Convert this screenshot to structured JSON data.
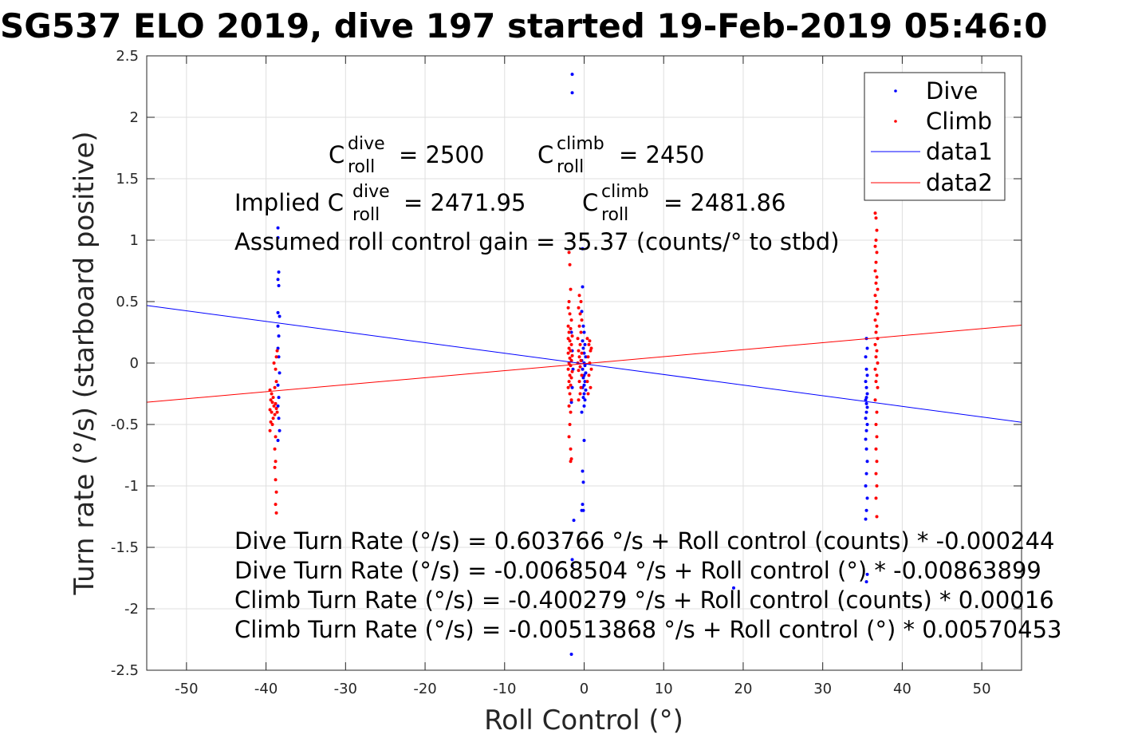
{
  "chart_data": {
    "type": "scatter",
    "title": "SG537 ELO 2019, dive 197 started 19-Feb-2019 05:46:0",
    "xlabel": "Roll Control (°)",
    "ylabel": "Turn rate (°/s) (starboard positive)",
    "xlim": [
      -55,
      55
    ],
    "ylim": [
      -2.5,
      2.5
    ],
    "x_ticks": [
      -50,
      -40,
      -30,
      -20,
      -10,
      0,
      10,
      20,
      30,
      40,
      50
    ],
    "x_tick_labels": [
      "-50",
      "-40",
      "-30",
      "-20",
      "-10",
      "0",
      "10",
      "20",
      "30",
      "40",
      "50"
    ],
    "y_ticks": [
      -2.5,
      -2,
      -1.5,
      -1,
      -0.5,
      0,
      0.5,
      1,
      1.5,
      2,
      2.5
    ],
    "y_tick_labels": [
      "-2.5",
      "-2",
      "-1.5",
      "-1",
      "-0.5",
      "0",
      "0.5",
      "1",
      "1.5",
      "2",
      "2.5"
    ],
    "grid": true,
    "legend_position": "top-right",
    "colors": {
      "dive": "#0000ff",
      "climb": "#ff0000"
    },
    "series": [
      {
        "name": "Dive",
        "style": "points",
        "color": "#0000ff",
        "points": [
          [
            -38.5,
            1.1
          ],
          [
            -38.5,
            1.02
          ],
          [
            -38.4,
            0.74
          ],
          [
            -38.5,
            0.68
          ],
          [
            -38.4,
            0.63
          ],
          [
            -38.5,
            0.41
          ],
          [
            -38.3,
            0.38
          ],
          [
            -38.5,
            0.3
          ],
          [
            -38.4,
            0.22
          ],
          [
            -38.5,
            0.12
          ],
          [
            -38.4,
            0.05
          ],
          [
            -38.3,
            -0.08
          ],
          [
            -38.5,
            -0.18
          ],
          [
            -38.4,
            -0.28
          ],
          [
            -38.5,
            -0.35
          ],
          [
            -38.4,
            -0.45
          ],
          [
            -38.3,
            -0.55
          ],
          [
            -38.5,
            -0.63
          ],
          [
            -1.5,
            2.35
          ],
          [
            -1.5,
            2.2
          ],
          [
            -1.6,
            0.25
          ],
          [
            -1.5,
            0.1
          ],
          [
            -1.4,
            -0.05
          ],
          [
            -1.5,
            -0.2
          ],
          [
            -1.6,
            -0.32
          ],
          [
            -1.3,
            -1.28
          ],
          [
            -1.5,
            -1.6
          ],
          [
            -1.5,
            -1.65
          ],
          [
            -1.6,
            -2.37
          ],
          [
            -0.2,
            0.93
          ],
          [
            -0.2,
            0.62
          ],
          [
            -0.3,
            0.42
          ],
          [
            -0.1,
            0.3
          ],
          [
            0.0,
            0.25
          ],
          [
            -0.2,
            0.18
          ],
          [
            0.1,
            0.15
          ],
          [
            -0.1,
            0.12
          ],
          [
            0.0,
            0.08
          ],
          [
            0.2,
            0.05
          ],
          [
            -0.3,
            0.02
          ],
          [
            0.0,
            0.0
          ],
          [
            0.1,
            -0.02
          ],
          [
            -0.2,
            -0.05
          ],
          [
            0.2,
            -0.08
          ],
          [
            0.0,
            -0.1
          ],
          [
            -0.1,
            -0.12
          ],
          [
            0.1,
            -0.15
          ],
          [
            0.0,
            -0.18
          ],
          [
            -0.2,
            -0.2
          ],
          [
            0.2,
            -0.22
          ],
          [
            0.0,
            -0.25
          ],
          [
            -0.1,
            -0.28
          ],
          [
            0.1,
            -0.3
          ],
          [
            0.0,
            -0.35
          ],
          [
            -0.3,
            -0.4
          ],
          [
            0.0,
            -0.63
          ],
          [
            -0.2,
            -0.88
          ],
          [
            -0.1,
            -0.97
          ],
          [
            -0.2,
            -1.15
          ],
          [
            -0.1,
            -1.2
          ],
          [
            -0.3,
            -1.2
          ],
          [
            18.8,
            -1.83
          ],
          [
            35.5,
            0.2
          ],
          [
            35.6,
            0.12
          ],
          [
            35.4,
            0.05
          ],
          [
            35.5,
            -0.05
          ],
          [
            35.6,
            -0.1
          ],
          [
            35.4,
            -0.15
          ],
          [
            35.5,
            -0.2
          ],
          [
            35.6,
            -0.25
          ],
          [
            35.5,
            -0.28
          ],
          [
            35.4,
            -0.3
          ],
          [
            35.5,
            -0.33
          ],
          [
            35.6,
            -0.36
          ],
          [
            35.5,
            -0.4
          ],
          [
            35.4,
            -0.45
          ],
          [
            35.6,
            -0.5
          ],
          [
            35.5,
            -0.55
          ],
          [
            35.4,
            -0.62
          ],
          [
            35.5,
            -0.7
          ],
          [
            35.6,
            -0.8
          ],
          [
            35.5,
            -0.9
          ],
          [
            35.4,
            -1.0
          ],
          [
            35.6,
            -1.1
          ],
          [
            35.5,
            -1.2
          ],
          [
            35.4,
            -1.27
          ],
          [
            35.6,
            -1.72
          ],
          [
            35.5,
            -1.78
          ]
        ]
      },
      {
        "name": "Climb",
        "style": "points",
        "color": "#ff0000",
        "points": [
          [
            -39.5,
            -0.22
          ],
          [
            -39.3,
            -0.25
          ],
          [
            -39.1,
            -0.28
          ],
          [
            -39.4,
            -0.3
          ],
          [
            -39.2,
            -0.32
          ],
          [
            -39.0,
            -0.35
          ],
          [
            -39.5,
            -0.38
          ],
          [
            -39.3,
            -0.4
          ],
          [
            -38.9,
            -0.42
          ],
          [
            -39.1,
            -0.45
          ],
          [
            -39.4,
            -0.48
          ],
          [
            -38.8,
            -0.33
          ],
          [
            -38.7,
            -0.37
          ],
          [
            -38.6,
            -0.4
          ],
          [
            -39.2,
            -0.5
          ],
          [
            -39.5,
            -0.55
          ],
          [
            -38.9,
            -0.2
          ],
          [
            -38.7,
            -0.15
          ],
          [
            -38.8,
            -0.05
          ],
          [
            -39.0,
            0.0
          ],
          [
            -38.7,
            0.05
          ],
          [
            -38.8,
            -0.6
          ],
          [
            -38.9,
            -0.7
          ],
          [
            -38.8,
            -0.8
          ],
          [
            -38.9,
            -0.85
          ],
          [
            -38.8,
            -0.95
          ],
          [
            -38.7,
            -1.05
          ],
          [
            -38.8,
            -1.15
          ],
          [
            -38.7,
            -1.22
          ],
          [
            -38.6,
            0.1
          ],
          [
            -1.9,
            0.9
          ],
          [
            -1.8,
            0.8
          ],
          [
            -1.7,
            0.6
          ],
          [
            -1.9,
            0.5
          ],
          [
            -2.0,
            0.45
          ],
          [
            -1.8,
            0.4
          ],
          [
            -1.6,
            0.35
          ],
          [
            -2.0,
            0.3
          ],
          [
            -1.7,
            0.28
          ],
          [
            -1.9,
            0.25
          ],
          [
            -1.5,
            0.22
          ],
          [
            -2.0,
            0.2
          ],
          [
            -1.8,
            0.18
          ],
          [
            -1.6,
            0.15
          ],
          [
            -1.9,
            0.12
          ],
          [
            -1.7,
            0.1
          ],
          [
            -2.0,
            0.08
          ],
          [
            -1.5,
            0.06
          ],
          [
            -1.8,
            0.04
          ],
          [
            -1.6,
            0.02
          ],
          [
            -1.9,
            0.0
          ],
          [
            -1.7,
            -0.02
          ],
          [
            -2.0,
            -0.05
          ],
          [
            -1.5,
            -0.07
          ],
          [
            -1.8,
            -0.1
          ],
          [
            -1.6,
            -0.12
          ],
          [
            -1.9,
            -0.15
          ],
          [
            -1.7,
            -0.18
          ],
          [
            -2.0,
            -0.2
          ],
          [
            -1.8,
            -0.25
          ],
          [
            -1.6,
            -0.3
          ],
          [
            -1.9,
            -0.35
          ],
          [
            -1.7,
            -0.4
          ],
          [
            -1.8,
            -0.5
          ],
          [
            -1.9,
            -0.6
          ],
          [
            -1.7,
            -0.7
          ],
          [
            -1.6,
            -0.78
          ],
          [
            -1.7,
            -0.8
          ],
          [
            -0.6,
            0.55
          ],
          [
            -0.4,
            0.5
          ],
          [
            -0.7,
            0.45
          ],
          [
            -0.5,
            0.4
          ],
          [
            -0.3,
            0.35
          ],
          [
            -0.6,
            0.3
          ],
          [
            -0.4,
            0.25
          ],
          [
            -0.8,
            0.2
          ],
          [
            -0.5,
            0.15
          ],
          [
            -0.7,
            0.1
          ],
          [
            -0.3,
            0.08
          ],
          [
            -0.6,
            0.05
          ],
          [
            -0.4,
            0.02
          ],
          [
            -0.8,
            0.0
          ],
          [
            -0.5,
            -0.03
          ],
          [
            -0.7,
            -0.06
          ],
          [
            -0.3,
            -0.1
          ],
          [
            -0.6,
            -0.15
          ],
          [
            -0.4,
            -0.2
          ],
          [
            -0.5,
            -0.25
          ],
          [
            -0.7,
            -0.3
          ],
          [
            0.4,
            0.2
          ],
          [
            0.6,
            0.15
          ],
          [
            0.8,
            0.1
          ],
          [
            0.5,
            0.05
          ],
          [
            0.7,
            0.0
          ],
          [
            0.9,
            -0.05
          ],
          [
            0.6,
            -0.1
          ],
          [
            0.4,
            -0.15
          ],
          [
            0.8,
            -0.2
          ],
          [
            0.5,
            -0.25
          ],
          [
            0.7,
            0.18
          ],
          [
            0.9,
            0.12
          ],
          [
            36.6,
            1.22
          ],
          [
            36.7,
            1.18
          ],
          [
            36.8,
            1.08
          ],
          [
            36.7,
            1.0
          ],
          [
            36.6,
            0.95
          ],
          [
            36.8,
            0.9
          ],
          [
            36.7,
            0.82
          ],
          [
            36.6,
            0.75
          ],
          [
            36.8,
            0.7
          ],
          [
            36.7,
            0.65
          ],
          [
            36.9,
            0.6
          ],
          [
            36.6,
            0.55
          ],
          [
            36.8,
            0.5
          ],
          [
            36.7,
            0.45
          ],
          [
            36.9,
            0.4
          ],
          [
            36.6,
            0.35
          ],
          [
            36.8,
            0.3
          ],
          [
            36.7,
            0.25
          ],
          [
            36.9,
            0.2
          ],
          [
            36.6,
            0.15
          ],
          [
            36.8,
            0.1
          ],
          [
            36.7,
            0.05
          ],
          [
            36.9,
            0.0
          ],
          [
            36.6,
            -0.05
          ],
          [
            36.8,
            -0.1
          ],
          [
            36.7,
            -0.15
          ],
          [
            36.9,
            -0.2
          ],
          [
            36.6,
            -0.3
          ],
          [
            36.8,
            -0.4
          ],
          [
            36.7,
            -0.5
          ],
          [
            36.8,
            -0.6
          ],
          [
            36.7,
            -0.7
          ],
          [
            36.8,
            -0.8
          ],
          [
            36.7,
            -0.9
          ],
          [
            36.8,
            -1.0
          ],
          [
            36.7,
            -1.1
          ],
          [
            36.8,
            -1.25
          ]
        ]
      },
      {
        "name": "data1",
        "style": "line",
        "color": "#0000ff",
        "x": [
          -55,
          55
        ],
        "y": [
          0.4683,
          -0.482
        ]
      },
      {
        "name": "data2",
        "style": "line",
        "color": "#ff0000",
        "x": [
          -55,
          55
        ],
        "y": [
          -0.3189,
          0.3086
        ]
      }
    ],
    "annotations": {
      "c_roll_dive": {
        "prefix": "C",
        "sup": "dive",
        "sub": "roll",
        "text": "= 2500"
      },
      "c_roll_climb": {
        "prefix": "C",
        "sup": "climb",
        "sub": "roll",
        "text": "= 2450"
      },
      "implied_dive": {
        "prefix": "Implied C",
        "sup": "dive",
        "sub": "roll",
        "text": "= 2471.95"
      },
      "implied_climb": {
        "prefix": "C",
        "sup": "climb",
        "sub": "roll",
        "text": "= 2481.86"
      },
      "gain": "Assumed roll control gain = 35.37 (counts/° to stbd)",
      "equations": [
        "Dive Turn Rate (°/s) = 0.603766 °/s + Roll control (counts) * -0.000244",
        "Dive Turn Rate (°/s) = -0.0068504 °/s + Roll control (°) * -0.00863899",
        "Climb Turn Rate (°/s) = -0.400279 °/s + Roll control (counts) * 0.00016",
        "Climb Turn Rate (°/s) = -0.00513868 °/s + Roll control (°) * 0.00570453"
      ]
    }
  }
}
